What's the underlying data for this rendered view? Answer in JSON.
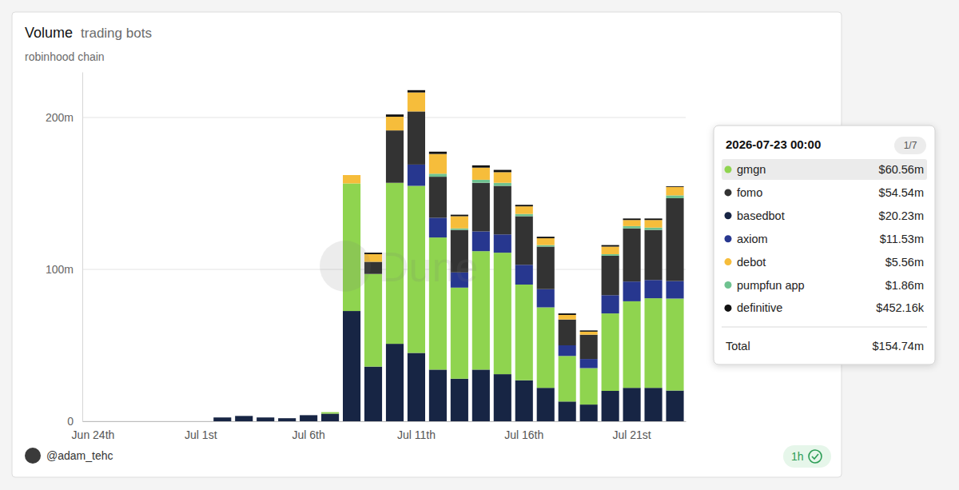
{
  "chart_data": {
    "type": "bar",
    "title": "Volume",
    "subtitle": "trading bots",
    "caption": "robinhood chain",
    "author": "@adam_tehc",
    "badge": "1h",
    "watermark": "Dune",
    "stacked": true,
    "grid": true,
    "categories": [
      "Jun 24th",
      null,
      null,
      null,
      null,
      "Jul 1st",
      null,
      null,
      null,
      null,
      "Jul 6th",
      null,
      null,
      null,
      null,
      "Jul 11th",
      null,
      null,
      null,
      null,
      "Jul 16th",
      null,
      null,
      null,
      null,
      "Jul 21st",
      null,
      null
    ],
    "ylim": [
      0,
      230
    ],
    "yticks": [
      0,
      {
        "value": 100,
        "label": "100m"
      },
      {
        "value": 200,
        "label": "200m"
      }
    ],
    "series": [
      {
        "name": "basedbot",
        "color": "#172544",
        "values": [
          0,
          0,
          0,
          0,
          0,
          0,
          2.5,
          3.5,
          2.5,
          2,
          4,
          5,
          72.6,
          36,
          51,
          45,
          34,
          28,
          34,
          31,
          27,
          22,
          13,
          11,
          20,
          22,
          22,
          20.23
        ]
      },
      {
        "name": "gmgn",
        "color": "#8fd44f",
        "values": [
          0,
          0,
          0,
          0,
          0,
          0,
          0,
          0,
          0,
          0,
          0,
          1,
          84,
          61,
          106,
          110,
          87,
          60,
          78,
          80,
          63,
          53,
          30,
          24,
          51,
          57,
          59,
          60.56
        ]
      },
      {
        "name": "axiom",
        "color": "#27378f",
        "values": [
          0,
          0,
          0,
          0,
          0,
          0,
          0,
          0,
          0,
          0,
          0,
          0,
          0,
          0,
          0,
          14,
          13,
          10,
          13,
          12,
          13,
          12,
          7,
          6,
          12,
          13,
          12,
          11.53
        ]
      },
      {
        "name": "fomo",
        "color": "#333333",
        "values": [
          0,
          0,
          0,
          0,
          0,
          0,
          0,
          0,
          0,
          0,
          0,
          0,
          0,
          8,
          34.5,
          35,
          27,
          28,
          32,
          32,
          32,
          28,
          17,
          16,
          26,
          35,
          33,
          54.54
        ]
      },
      {
        "name": "pumpfun app",
        "color": "#6fc290",
        "values": [
          0,
          0,
          0,
          0,
          0,
          0,
          0,
          0,
          0,
          0,
          0,
          0,
          0,
          0,
          0,
          0,
          2,
          1,
          2,
          2,
          1.5,
          1,
          0,
          0,
          1,
          1.5,
          1.5,
          1.86
        ]
      },
      {
        "name": "debot",
        "color": "#f6bd3b",
        "values": [
          0,
          0,
          0,
          0,
          0,
          0,
          0,
          0,
          0,
          0,
          0,
          0,
          5.5,
          5,
          9,
          12.5,
          13,
          8,
          8,
          7,
          5,
          4.5,
          3,
          2,
          5,
          4,
          5,
          5.56
        ]
      },
      {
        "name": "definitive",
        "color": "#111111",
        "values": [
          0,
          0,
          0,
          0,
          0,
          0,
          0,
          0,
          0,
          0,
          0,
          0,
          0,
          1,
          1.5,
          1.5,
          1.5,
          1,
          1.5,
          1.5,
          1,
          1,
          1,
          0.8,
          1,
          1,
          1,
          0.45216
        ]
      }
    ],
    "tooltip": {
      "date": "2026-07-23 00:00",
      "page": "1/7",
      "rows": [
        {
          "name": "gmgn",
          "value": 60.56,
          "label": "$60.56m"
        },
        {
          "name": "fomo",
          "value": 54.54,
          "label": "$54.54m"
        },
        {
          "name": "basedbot",
          "value": 20.23,
          "label": "$20.23m"
        },
        {
          "name": "axiom",
          "value": 11.53,
          "label": "$11.53m"
        },
        {
          "name": "debot",
          "value": 5.56,
          "label": "$5.56m"
        },
        {
          "name": "pumpfun app",
          "value": 1.86,
          "label": "$1.86m"
        },
        {
          "name": "definitive",
          "value": 0.45216,
          "label": "$452.16k"
        }
      ],
      "total_name": "Total",
      "total": {
        "value": 154.74,
        "label": "$154.74m"
      }
    }
  }
}
